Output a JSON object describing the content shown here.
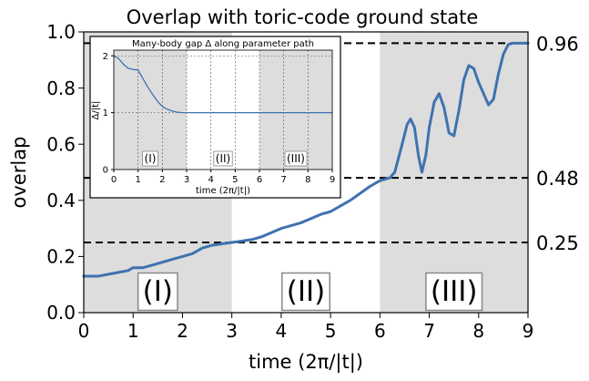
{
  "chart_data": [
    {
      "type": "line",
      "title": "Overlap with toric-code ground state",
      "xlabel": "time (2π/|t|)",
      "ylabel": "overlap",
      "xlim": [
        0,
        9
      ],
      "ylim": [
        0,
        1
      ],
      "xticks": [
        "0",
        "1",
        "2",
        "3",
        "4",
        "5",
        "6",
        "7",
        "8",
        "9"
      ],
      "yticks": [
        "0.0",
        "0.2",
        "0.4",
        "0.6",
        "0.8",
        "1.0"
      ],
      "grid": false,
      "shaded_regions": [
        {
          "from": 0,
          "to": 3,
          "color": "#dddddd"
        },
        {
          "from": 6,
          "to": 9,
          "color": "#dddddd"
        }
      ],
      "region_labels": [
        {
          "text": "(I)",
          "x": 1.5
        },
        {
          "text": "(II)",
          "x": 4.5
        },
        {
          "text": "(III)",
          "x": 7.5
        }
      ],
      "reference_lines": [
        {
          "y": 0.25,
          "label": "0.25"
        },
        {
          "y": 0.48,
          "label": "0.48"
        },
        {
          "y": 0.96,
          "label": "0.96"
        }
      ],
      "series": [
        {
          "color": "#3f72af",
          "x": [
            0,
            0.3,
            0.6,
            0.9,
            1.0,
            1.2,
            1.4,
            1.6,
            1.8,
            2.0,
            2.2,
            2.4,
            2.6,
            2.8,
            3.0,
            3.2,
            3.4,
            3.6,
            3.8,
            4.0,
            4.2,
            4.4,
            4.6,
            4.8,
            5.0,
            5.2,
            5.4,
            5.6,
            5.8,
            6.0,
            6.2,
            6.3,
            6.45,
            6.55,
            6.62,
            6.7,
            6.78,
            6.85,
            6.93,
            7.0,
            7.1,
            7.2,
            7.3,
            7.4,
            7.5,
            7.6,
            7.7,
            7.8,
            7.9,
            8.0,
            8.2,
            8.3,
            8.4,
            8.5,
            8.6,
            8.7,
            8.8,
            8.9,
            9.0
          ],
          "y": [
            0.13,
            0.13,
            0.14,
            0.15,
            0.16,
            0.16,
            0.17,
            0.18,
            0.19,
            0.2,
            0.21,
            0.23,
            0.24,
            0.245,
            0.25,
            0.255,
            0.26,
            0.27,
            0.285,
            0.3,
            0.31,
            0.32,
            0.335,
            0.35,
            0.36,
            0.38,
            0.4,
            0.425,
            0.45,
            0.47,
            0.48,
            0.5,
            0.6,
            0.67,
            0.69,
            0.66,
            0.56,
            0.5,
            0.56,
            0.66,
            0.75,
            0.78,
            0.73,
            0.64,
            0.63,
            0.72,
            0.83,
            0.88,
            0.87,
            0.82,
            0.74,
            0.76,
            0.85,
            0.92,
            0.955,
            0.96,
            0.96,
            0.96,
            0.96
          ]
        }
      ]
    },
    {
      "type": "line",
      "title": "Many-body gap Δ along parameter path",
      "xlabel": "time (2π/|t|)",
      "ylabel": "Δ/|t|",
      "xlim": [
        0,
        9
      ],
      "ylim": [
        0,
        2.1
      ],
      "xticks": [
        "0",
        "1",
        "2",
        "3",
        "4",
        "5",
        "6",
        "7",
        "8",
        "9"
      ],
      "yticks": [
        "0",
        "1",
        "2"
      ],
      "grid": true,
      "shaded_regions": [
        {
          "from": 0,
          "to": 3,
          "color": "#dddddd"
        },
        {
          "from": 6,
          "to": 9,
          "color": "#dddddd"
        }
      ],
      "region_labels": [
        {
          "text": "(I)",
          "x": 1.5
        },
        {
          "text": "(II)",
          "x": 4.5
        },
        {
          "text": "(III)",
          "x": 7.5
        }
      ],
      "series": [
        {
          "color": "#3f72af",
          "x": [
            0,
            0.2,
            0.4,
            0.6,
            0.8,
            1.0,
            1.2,
            1.4,
            1.6,
            1.8,
            2.0,
            2.2,
            2.4,
            2.6,
            2.8,
            3.0,
            4.0,
            5.0,
            6.0,
            7.0,
            8.0,
            9.0
          ],
          "y": [
            2.0,
            1.95,
            1.85,
            1.78,
            1.76,
            1.75,
            1.6,
            1.45,
            1.32,
            1.2,
            1.11,
            1.06,
            1.03,
            1.01,
            1.0,
            1.0,
            1.0,
            1.0,
            1.0,
            1.0,
            1.0,
            1.0
          ]
        }
      ]
    }
  ]
}
